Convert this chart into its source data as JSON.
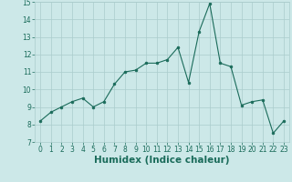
{
  "xlabel": "Humidex (Indice chaleur)",
  "x": [
    0,
    1,
    2,
    3,
    4,
    5,
    6,
    7,
    8,
    9,
    10,
    11,
    12,
    13,
    14,
    15,
    16,
    17,
    18,
    19,
    20,
    21,
    22,
    23
  ],
  "y": [
    8.2,
    8.7,
    9.0,
    9.3,
    9.5,
    9.0,
    9.3,
    10.3,
    11.0,
    11.1,
    11.5,
    11.5,
    11.7,
    12.4,
    10.4,
    13.3,
    14.9,
    11.5,
    11.3,
    9.1,
    9.3,
    9.4,
    7.5,
    8.2
  ],
  "ylim": [
    7,
    15
  ],
  "xlim": [
    -0.5,
    23.5
  ],
  "yticks": [
    7,
    8,
    9,
    10,
    11,
    12,
    13,
    14,
    15
  ],
  "xticks": [
    0,
    1,
    2,
    3,
    4,
    5,
    6,
    7,
    8,
    9,
    10,
    11,
    12,
    13,
    14,
    15,
    16,
    17,
    18,
    19,
    20,
    21,
    22,
    23
  ],
  "line_color": "#1a6b5a",
  "marker_color": "#1a6b5a",
  "bg_color": "#cce8e8",
  "grid_color": "#aacccc",
  "tick_label_fontsize": 5.5,
  "xlabel_fontsize": 7.5
}
